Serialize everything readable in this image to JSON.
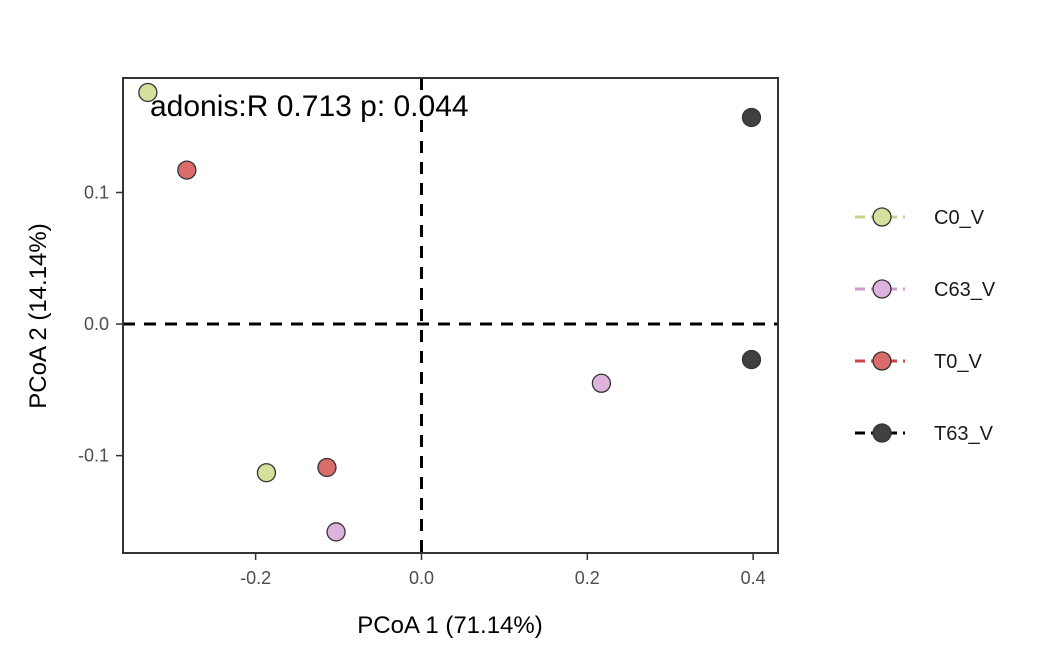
{
  "chart_data": {
    "type": "scatter",
    "title": "",
    "xlabel": "PCoA 1 (71.14%)",
    "ylabel": "PCoA 2 (14.14%)",
    "xlim": [
      -0.36,
      0.43
    ],
    "ylim": [
      -0.174,
      0.187
    ],
    "x_ticks": [
      -0.2,
      0.0,
      0.2,
      0.4
    ],
    "x_tick_labels": [
      "-0.2",
      "0.0",
      "0.2",
      "0.4"
    ],
    "y_ticks": [
      -0.1,
      0.0,
      0.1
    ],
    "y_tick_labels": [
      "-0.1",
      "0.0",
      "0.1"
    ],
    "grid": false,
    "reference_lines": {
      "x": 0,
      "y": 0,
      "style": "dashed"
    },
    "annotation": "adonis:R 0.713 p: 0.044",
    "legend": {
      "position": "right"
    },
    "series": [
      {
        "name": "C0_V",
        "color": "#d4e09b",
        "line_color": "#c5d68a",
        "points": [
          {
            "x": -0.33,
            "y": 0.176
          },
          {
            "x": -0.187,
            "y": -0.113
          }
        ]
      },
      {
        "name": "C63_V",
        "color": "#ddb3dd",
        "line_color": "#cf99cf",
        "points": [
          {
            "x": 0.217,
            "y": -0.045
          },
          {
            "x": -0.103,
            "y": -0.158
          }
        ]
      },
      {
        "name": "T0_V",
        "color": "#d96b6b",
        "line_color": "#cc4444",
        "points": [
          {
            "x": -0.283,
            "y": 0.117
          },
          {
            "x": -0.114,
            "y": -0.109
          }
        ]
      },
      {
        "name": "T63_V",
        "color": "#404040",
        "line_color": "#000000",
        "points": [
          {
            "x": 0.398,
            "y": 0.157
          },
          {
            "x": 0.398,
            "y": -0.027
          }
        ]
      }
    ]
  }
}
